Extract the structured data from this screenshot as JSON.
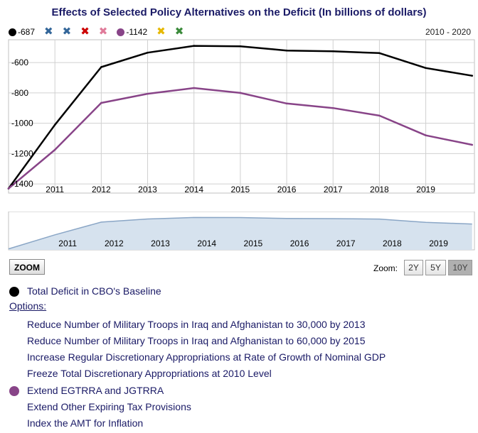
{
  "title": "Effects of Selected Policy Alternatives on the Deficit (In billions of dollars)",
  "range_label": "2010 - 2020",
  "legend_items": [
    {
      "kind": "dot",
      "color": "#000000",
      "label": "-687"
    },
    {
      "kind": "x",
      "color": "#336699",
      "label": ""
    },
    {
      "kind": "x",
      "color": "#336699",
      "label": ""
    },
    {
      "kind": "x",
      "color": "#cc0000",
      "label": ""
    },
    {
      "kind": "x",
      "color": "#e07b9a",
      "label": ""
    },
    {
      "kind": "dot",
      "color": "#884488",
      "label": "-1142"
    },
    {
      "kind": "x",
      "color": "#e6b800",
      "label": ""
    },
    {
      "kind": "x",
      "color": "#3a8a3a",
      "label": ""
    }
  ],
  "chart_data": {
    "type": "line",
    "title": "Effects of Selected Policy Alternatives on the Deficit (In billions of dollars)",
    "x": [
      2010,
      2011,
      2012,
      2013,
      2014,
      2015,
      2016,
      2017,
      2018,
      2019,
      2020
    ],
    "x_tick_labels": [
      "2011",
      "2012",
      "2013",
      "2014",
      "2015",
      "2016",
      "2017",
      "2018",
      "2019"
    ],
    "y_tick_labels": [
      "-600",
      "-800",
      "-1000",
      "-1200",
      "-1400"
    ],
    "y_ticks": [
      -600,
      -800,
      -1000,
      -1200,
      -1400
    ],
    "ylim": [
      -1460,
      -450
    ],
    "xlim": [
      2010,
      2020.05
    ],
    "grid": true,
    "series": [
      {
        "name": "Total Deficit in CBO's Baseline",
        "color": "#000000",
        "values": [
          -1430,
          -1010,
          -630,
          -535,
          -490,
          -493,
          -521,
          -526,
          -538,
          -636,
          -687
        ]
      },
      {
        "name": "Extend EGTRRA and JGTRRA",
        "color": "#884488",
        "values": [
          -1430,
          -1175,
          -866,
          -806,
          -768,
          -800,
          -870,
          -900,
          -950,
          -1080,
          -1142
        ]
      }
    ]
  },
  "navigator": {
    "x_tick_labels": [
      "2011",
      "2012",
      "2013",
      "2014",
      "2015",
      "2016",
      "2017",
      "2018",
      "2019"
    ]
  },
  "zoom": {
    "button_label": "ZOOM",
    "label": "Zoom:",
    "buttons": [
      "2Y",
      "5Y",
      "10Y"
    ],
    "active": "10Y"
  },
  "series_list": [
    {
      "label": "Total Deficit in CBO's Baseline",
      "dot_color": "#000000"
    },
    {
      "options_label": "Options:"
    },
    {
      "label": "Reduce Number of Military Troops in Iraq and Afghanistan to 30,000 by 2013"
    },
    {
      "label": "Reduce Number of Military Troops in Iraq and Afghanistan to 60,000 by 2015"
    },
    {
      "label": "Increase Regular Discretionary Appropriations at Rate of Growth of Nominal GDP"
    },
    {
      "label": "Freeze Total Discretionary Appropriations at 2010 Level"
    },
    {
      "label": "Extend EGTRRA and JGTRRA",
      "dot_color": "#884488"
    },
    {
      "label": "Extend Other Expiring Tax Provisions"
    },
    {
      "label": "Index the AMT for Inflation"
    }
  ]
}
